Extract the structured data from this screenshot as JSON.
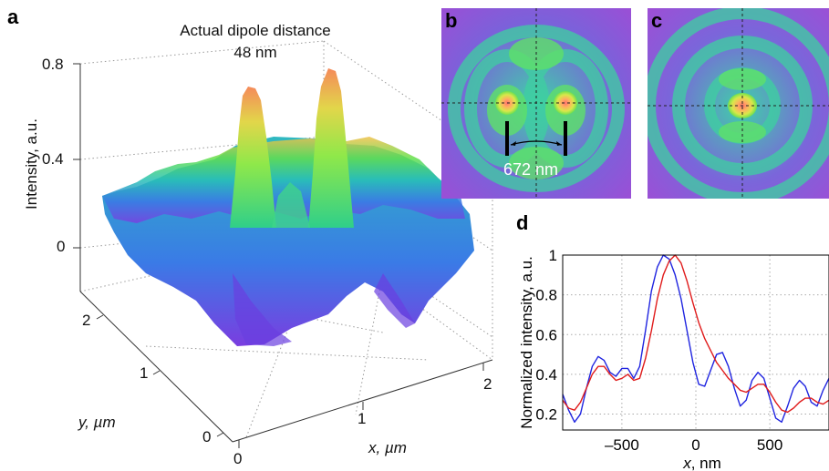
{
  "panel_labels": {
    "a": "a",
    "b": "b",
    "c": "c",
    "d": "d"
  },
  "panel_a": {
    "title_line1": "Actual dipole distance",
    "title_line2": "48 nm",
    "zlabel": "Intensity, a.u.",
    "ylabel": "y, µm",
    "xlabel": "x, µm",
    "zticks": [
      "0.8",
      "0.4",
      "0"
    ],
    "yticks": [
      "2",
      "1",
      "0"
    ],
    "xticks": [
      "0",
      "1",
      "2"
    ]
  },
  "panel_b": {
    "distance_label": "672 nm"
  },
  "colors": {
    "blue_line": "#1f24e0",
    "red_line": "#e01b1b",
    "map_background": "#8f55d8",
    "map_ring": "#35c8ad",
    "map_peak": "#ff8f6b"
  },
  "chart_data": {
    "type": "line",
    "xlabel": "x, nm",
    "ylabel": "Normalized intensity, a.u.",
    "xlim": [
      -900,
      900
    ],
    "ylim": [
      0.12,
      1.0
    ],
    "xticks": [
      -500,
      0,
      500
    ],
    "xtick_labels": [
      "–500",
      "0",
      "500"
    ],
    "yticks": [
      0.2,
      0.4,
      0.6,
      0.8,
      1.0
    ],
    "ytick_labels": [
      "0.2",
      "0.4",
      "0.6",
      "0.8",
      "1"
    ],
    "grid": true,
    "series": [
      {
        "color": "#1f24e0",
        "x": [
          -900,
          -860,
          -820,
          -780,
          -740,
          -700,
          -660,
          -620,
          -580,
          -540,
          -500,
          -460,
          -420,
          -380,
          -340,
          -300,
          -260,
          -220,
          -180,
          -140,
          -100,
          -60,
          -20,
          20,
          60,
          100,
          140,
          180,
          220,
          260,
          300,
          340,
          380,
          420,
          460,
          500,
          540,
          580,
          620,
          660,
          700,
          740,
          780,
          820,
          860,
          900
        ],
        "y": [
          0.3,
          0.22,
          0.16,
          0.2,
          0.33,
          0.44,
          0.49,
          0.47,
          0.41,
          0.39,
          0.43,
          0.43,
          0.38,
          0.44,
          0.62,
          0.82,
          0.94,
          1.0,
          0.98,
          0.9,
          0.78,
          0.62,
          0.46,
          0.35,
          0.34,
          0.42,
          0.5,
          0.51,
          0.44,
          0.33,
          0.24,
          0.27,
          0.37,
          0.41,
          0.38,
          0.28,
          0.18,
          0.16,
          0.24,
          0.33,
          0.37,
          0.34,
          0.26,
          0.24,
          0.32,
          0.38
        ]
      },
      {
        "color": "#e01b1b",
        "x": [
          -900,
          -860,
          -820,
          -780,
          -740,
          -700,
          -660,
          -620,
          -580,
          -540,
          -500,
          -460,
          -420,
          -380,
          -340,
          -300,
          -260,
          -220,
          -180,
          -140,
          -100,
          -60,
          -20,
          20,
          60,
          100,
          140,
          180,
          220,
          260,
          300,
          340,
          380,
          420,
          460,
          500,
          540,
          580,
          620,
          660,
          700,
          740,
          780,
          820,
          860,
          900
        ],
        "y": [
          0.27,
          0.23,
          0.22,
          0.26,
          0.33,
          0.4,
          0.44,
          0.44,
          0.4,
          0.37,
          0.38,
          0.4,
          0.37,
          0.38,
          0.48,
          0.62,
          0.78,
          0.9,
          0.97,
          1.0,
          0.96,
          0.87,
          0.76,
          0.66,
          0.58,
          0.52,
          0.46,
          0.42,
          0.38,
          0.35,
          0.32,
          0.31,
          0.33,
          0.35,
          0.35,
          0.31,
          0.26,
          0.22,
          0.21,
          0.23,
          0.26,
          0.28,
          0.28,
          0.26,
          0.25,
          0.27
        ]
      }
    ]
  }
}
